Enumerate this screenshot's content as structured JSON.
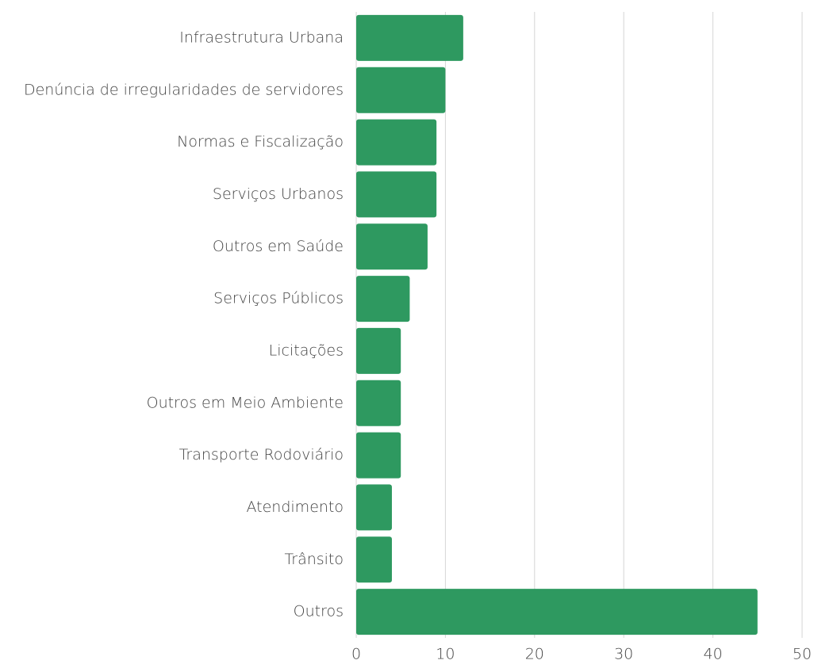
{
  "chart_data": {
    "type": "bar",
    "orientation": "horizontal",
    "categories": [
      "Infraestrutura Urbana",
      "Denúncia de irregularidades de servidores",
      "Normas e Fiscalização",
      "Serviços Urbanos",
      "Outros em Saúde",
      "Serviços Públicos",
      "Licitações",
      "Outros em Meio Ambiente",
      "Transporte Rodoviário",
      "Atendimento",
      "Trânsito",
      "Outros"
    ],
    "values": [
      12,
      10,
      9,
      9,
      8,
      6,
      5,
      5,
      5,
      4,
      4,
      45
    ],
    "color": "#2e9960",
    "xlim": [
      0,
      50
    ],
    "xticks": [
      0,
      10,
      20,
      30,
      40,
      50
    ],
    "grid": true
  }
}
